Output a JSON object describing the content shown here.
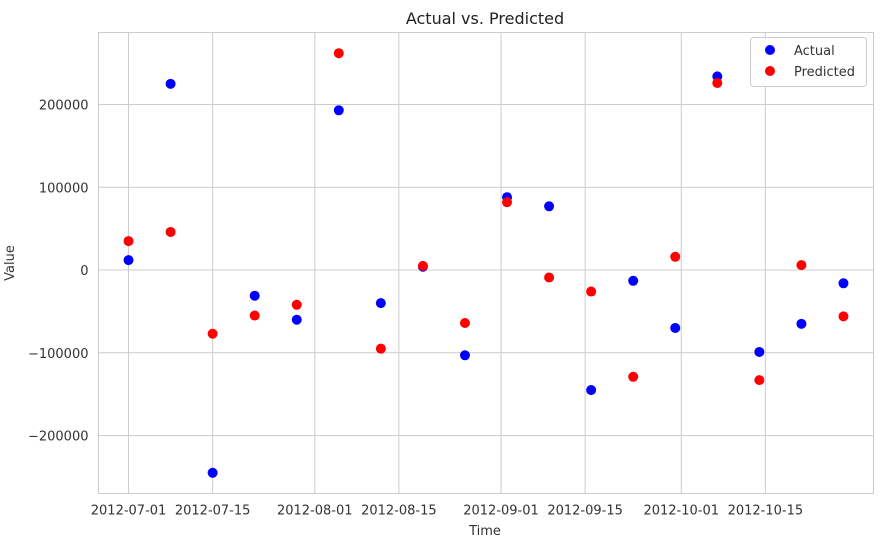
{
  "chart_data": {
    "type": "scatter",
    "title": "Actual vs. Predicted",
    "xlabel": "Time",
    "ylabel": "Value",
    "x": [
      "2012-07-01",
      "2012-07-08",
      "2012-07-15",
      "2012-07-22",
      "2012-07-29",
      "2012-08-05",
      "2012-08-12",
      "2012-08-19",
      "2012-08-26",
      "2012-09-02",
      "2012-09-09",
      "2012-09-16",
      "2012-09-23",
      "2012-09-30",
      "2012-10-07",
      "2012-10-14",
      "2012-10-21",
      "2012-10-28"
    ],
    "series": [
      {
        "name": "Actual",
        "color": "#0000ff",
        "values": [
          12000,
          225000,
          -245000,
          -31000,
          -60000,
          193000,
          -40000,
          4000,
          -103000,
          88000,
          77000,
          -145000,
          -13000,
          -70000,
          234000,
          -99000,
          -65000,
          -16000
        ]
      },
      {
        "name": "Predicted",
        "color": "#ff0000",
        "values": [
          35000,
          46000,
          -77000,
          -55000,
          -42000,
          262000,
          -95000,
          5000,
          -64000,
          82000,
          -9000,
          -26000,
          -129000,
          16000,
          226000,
          -133000,
          6000,
          -56000
        ]
      }
    ],
    "xticks": [
      "2012-07-01",
      "2012-07-15",
      "2012-08-01",
      "2012-08-15",
      "2012-09-01",
      "2012-09-15",
      "2012-10-01",
      "2012-10-15"
    ],
    "yticks": [
      -200000,
      -100000,
      0,
      100000,
      200000
    ],
    "ytick_labels": [
      "−200000",
      "−100000",
      "0",
      "100000",
      "200000"
    ],
    "xlim": [
      "2012-06-26",
      "2012-11-02"
    ],
    "ylim": [
      -270000,
      287000
    ],
    "grid": true,
    "legend": "top-right"
  }
}
